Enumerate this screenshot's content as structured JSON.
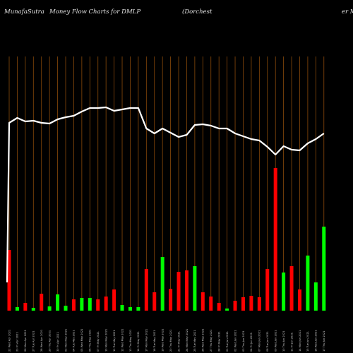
{
  "header": {
    "site": "MunafaSutra",
    "title": "Money Flow  Charts for DMLP",
    "company_left": "(Dorchest",
    "company_right": "er M"
  },
  "colors": {
    "background": "#000000",
    "gridline": "#8a4a0a",
    "up": "#00ff00",
    "down": "#ff0000",
    "line": "#ffffff"
  },
  "chart_data": {
    "type": "bar",
    "grid": true,
    "categories": [
      "22 Wed Apr 2021",
      "23 Fri Apr 2021",
      "26 Mon Apr 2021",
      "27 Tue Apr 2021",
      "28 Wed Apr 2021",
      "29 Thu Apr 2021",
      "30 Fri Apr 2021",
      "03 Mon May 2021",
      "04 Tue May 2021",
      "05 Wed May 2021",
      "06 Thu May 2021",
      "07 Fri May 2021",
      "10 Mon May 2021",
      "11 Tue May 2021",
      "12 Wed May 2021",
      "13 Thu May 2021",
      "14 Fri May 2021",
      "17 Mon May 2021",
      "18 Tue May 2021",
      "19 Wed May 2021",
      "20 Thu May 2021",
      "21 Fri May 2021",
      "24 Mon May 2021",
      "25 Tue May 2021",
      "26 Wed May 2021",
      "27 Thu May 2021",
      "28 Fri May 2021",
      "01 Tue Jun 2021",
      "02 Wed Jun 2021",
      "03 Thu Jun 2021",
      "04 Fri Jun 2021",
      "07 Mon Jun 2021",
      "08 Tue Jun 2021",
      "09 Wed Jun 2021",
      "10 Thu Jun 2021",
      "11 Fri Jun 2021",
      "14 Mon Jun 2021",
      "15 Tue Jun 2021",
      "16 Wed Jun 2021",
      "17 Thu Jun 2021"
    ],
    "bars": [
      {
        "value": 86,
        "direction": "down"
      },
      {
        "value": 5,
        "direction": "up"
      },
      {
        "value": 11,
        "direction": "down"
      },
      {
        "value": 4,
        "direction": "up"
      },
      {
        "value": 24,
        "direction": "down"
      },
      {
        "value": 6,
        "direction": "up"
      },
      {
        "value": 23,
        "direction": "up"
      },
      {
        "value": 7,
        "direction": "up"
      },
      {
        "value": 16,
        "direction": "down"
      },
      {
        "value": 18,
        "direction": "up"
      },
      {
        "value": 18,
        "direction": "up"
      },
      {
        "value": 16,
        "direction": "down"
      },
      {
        "value": 20,
        "direction": "down"
      },
      {
        "value": 30,
        "direction": "down"
      },
      {
        "value": 8,
        "direction": "up"
      },
      {
        "value": 5,
        "direction": "up"
      },
      {
        "value": 5,
        "direction": "up"
      },
      {
        "value": 59,
        "direction": "down"
      },
      {
        "value": 26,
        "direction": "down"
      },
      {
        "value": 76,
        "direction": "up"
      },
      {
        "value": 31,
        "direction": "down"
      },
      {
        "value": 55,
        "direction": "down"
      },
      {
        "value": 57,
        "direction": "down"
      },
      {
        "value": 63,
        "direction": "up"
      },
      {
        "value": 26,
        "direction": "down"
      },
      {
        "value": 20,
        "direction": "down"
      },
      {
        "value": 11,
        "direction": "down"
      },
      {
        "value": 3,
        "direction": "up"
      },
      {
        "value": 14,
        "direction": "down"
      },
      {
        "value": 19,
        "direction": "down"
      },
      {
        "value": 21,
        "direction": "down"
      },
      {
        "value": 19,
        "direction": "down"
      },
      {
        "value": 59,
        "direction": "down"
      },
      {
        "value": 202,
        "direction": "down"
      },
      {
        "value": 54,
        "direction": "up"
      },
      {
        "value": 63,
        "direction": "down"
      },
      {
        "value": 30,
        "direction": "down"
      },
      {
        "value": 78,
        "direction": "up"
      },
      {
        "value": 40,
        "direction": "up"
      },
      {
        "value": 119,
        "direction": "up"
      }
    ],
    "ylim": [
      0,
      360
    ],
    "line": [
      174,
      167,
      172,
      171,
      174,
      175,
      169,
      166,
      164,
      158,
      153,
      153,
      152,
      157,
      155,
      153,
      153,
      182,
      189,
      182,
      188,
      194,
      191,
      177,
      176,
      178,
      182,
      182,
      189,
      193,
      197,
      199,
      208,
      219,
      207,
      212,
      213,
      203,
      197,
      189
    ],
    "line_start": 400,
    "line_ylim": [
      0,
      500
    ]
  }
}
